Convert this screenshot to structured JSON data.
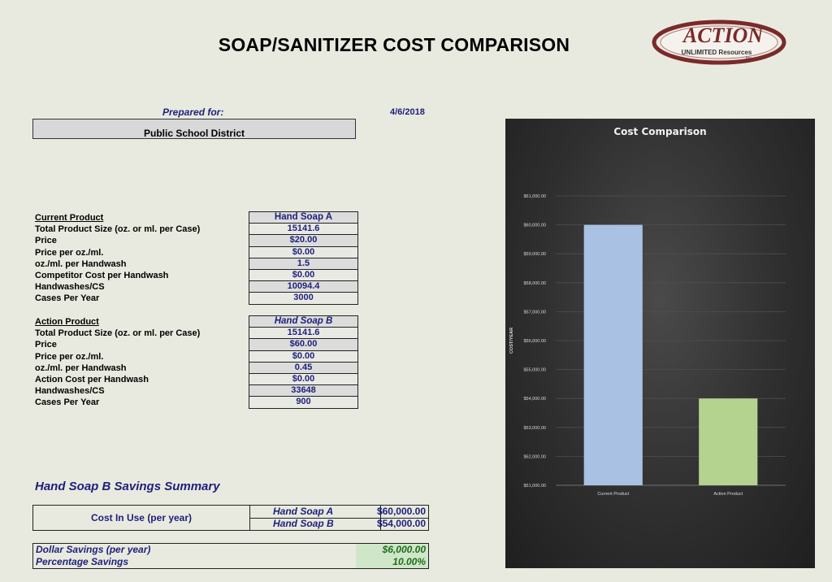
{
  "page": {
    "title": "SOAP/SANITIZER COST COMPARISON",
    "logo_main": "ACTION",
    "logo_sub": "UNLIMITED Resources",
    "logo_inc": "Inc.",
    "prepared_label": "Prepared for:",
    "date": "4/6/2018",
    "client": "Public School District"
  },
  "current": {
    "labels": [
      "Current Product",
      "Total Product Size (oz. or ml. per Case)",
      "Price",
      "Price per oz./ml.",
      "oz./ml. per Handwash",
      "Competitor Cost per Handwash",
      "Handwashes/CS",
      "Cases Per Year"
    ],
    "values": [
      "Hand Soap A",
      "15141.6",
      "$20.00",
      "$0.00",
      "1.5",
      "$0.00",
      "10094.4",
      "3000"
    ]
  },
  "action": {
    "labels": [
      "Action Product",
      "Total Product Size (oz. or ml. per Case)",
      "Price",
      "Price per oz./ml.",
      "oz./ml. per Handwash",
      "Action Cost per Handwash",
      "Handwashes/CS",
      "Cases Per Year"
    ],
    "values": [
      "Hand Soap B",
      "15141.6",
      "$60.00",
      "$0.00",
      "0.45",
      "$0.00",
      "33648",
      "900"
    ]
  },
  "summary": {
    "title": "Hand Soap B Savings Summary",
    "cost_in_use_label": "Cost In Use (per year)",
    "a_name": "Hand Soap A",
    "a_value": "$60,000.00",
    "b_name": "Hand Soap B",
    "b_value": "$54,000.00",
    "dollar_label": "Dollar Savings (per year)",
    "dollar_value": "$6,000.00",
    "pct_label": "Percentage Savings",
    "pct_value": "10.00%"
  },
  "chart_data": {
    "type": "bar",
    "title": "Cost Comparison",
    "ylabel": "COST/YEAR",
    "xlabel": "",
    "categories": [
      "Current Product",
      "Action Product"
    ],
    "values": [
      60000,
      54000
    ],
    "colors": [
      "#a9c1e2",
      "#b3d38f"
    ],
    "ylim": [
      51000,
      61000
    ],
    "yticks": [
      51000,
      52000,
      53000,
      54000,
      55000,
      56000,
      57000,
      58000,
      59000,
      60000,
      61000
    ],
    "ytick_labels": [
      "$51,000.00",
      "$52,000.00",
      "$53,000.00",
      "$54,000.00",
      "$55,000.00",
      "$56,000.00",
      "$57,000.00",
      "$58,000.00",
      "$59,000.00",
      "$60,000.00",
      "$61,000.00"
    ],
    "grid": true,
    "legend": "none"
  }
}
